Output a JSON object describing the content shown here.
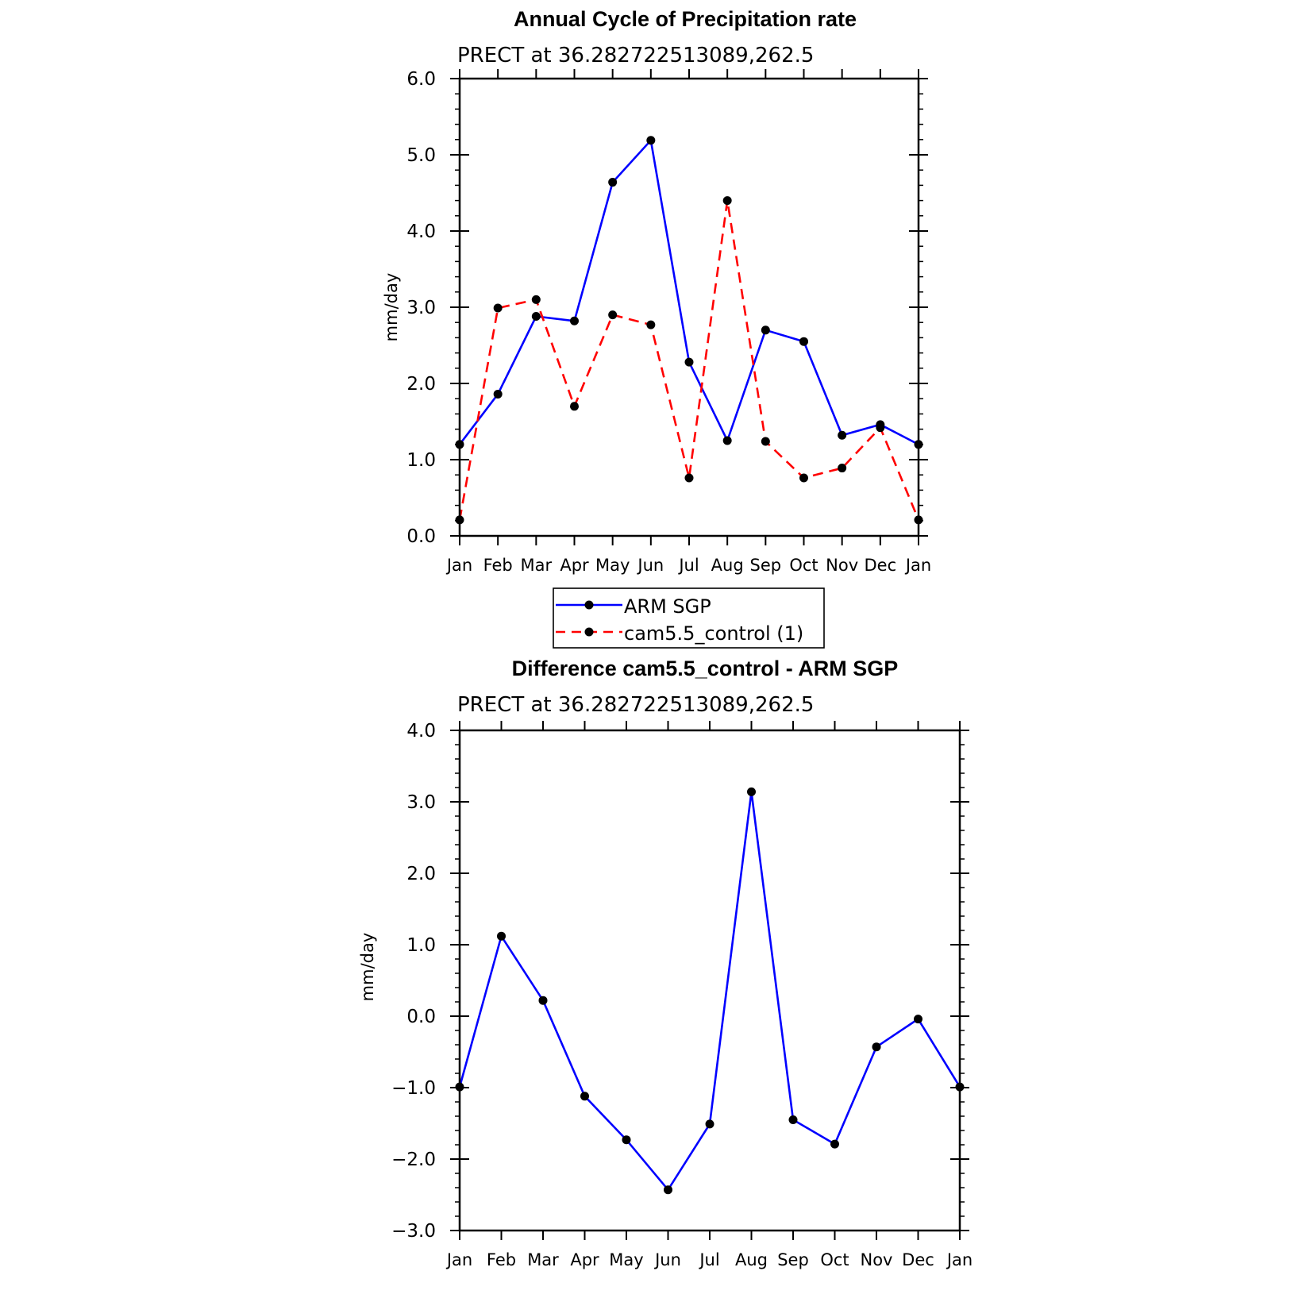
{
  "chart_data": [
    {
      "type": "line",
      "title": "Annual Cycle of Precipitation rate",
      "subtitle": "PRECT at 36.282722513089,262.5",
      "xlabel": "",
      "ylabel": "mm/day",
      "categories": [
        "Jan",
        "Feb",
        "Mar",
        "Apr",
        "May",
        "Jun",
        "Jul",
        "Aug",
        "Sep",
        "Oct",
        "Nov",
        "Dec",
        "Jan"
      ],
      "ylim": [
        0,
        6
      ],
      "yticks": [
        "0.0",
        "1.0",
        "2.0",
        "3.0",
        "4.0",
        "5.0",
        "6.0"
      ],
      "grid": false,
      "legend_position": "bottom-center",
      "series": [
        {
          "name": "ARM SGP",
          "color": "#0000ff",
          "style": "solid",
          "values": [
            1.2,
            1.86,
            2.88,
            2.82,
            4.64,
            5.19,
            2.28,
            1.25,
            2.7,
            2.55,
            1.32,
            1.46,
            1.2
          ]
        },
        {
          "name": "cam5.5_control (1)",
          "color": "#ff0000",
          "style": "dashed",
          "values": [
            0.21,
            2.99,
            3.1,
            1.7,
            2.9,
            2.77,
            0.76,
            4.4,
            1.24,
            0.76,
            0.89,
            1.42,
            0.21
          ]
        }
      ]
    },
    {
      "type": "line",
      "title": "Difference cam5.5_control - ARM SGP",
      "subtitle": "PRECT at 36.282722513089,262.5",
      "xlabel": "",
      "ylabel": "mm/day",
      "categories": [
        "Jan",
        "Feb",
        "Mar",
        "Apr",
        "May",
        "Jun",
        "Jul",
        "Aug",
        "Sep",
        "Oct",
        "Nov",
        "Dec",
        "Jan"
      ],
      "ylim": [
        -3,
        4
      ],
      "yticks": [
        "−3.0",
        "−2.0",
        "−1.0",
        "0.0",
        "1.0",
        "2.0",
        "3.0",
        "4.0"
      ],
      "grid": false,
      "series": [
        {
          "color": "#0000ff",
          "style": "solid",
          "values": [
            -0.99,
            1.12,
            0.22,
            -1.12,
            -1.73,
            -2.43,
            -1.51,
            3.14,
            -1.45,
            -1.79,
            -0.43,
            -0.04,
            -0.99
          ]
        }
      ]
    }
  ]
}
